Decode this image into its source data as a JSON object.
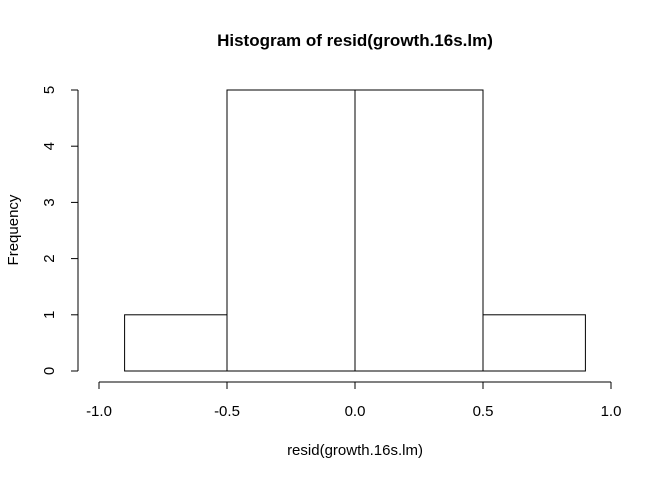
{
  "chart_data": {
    "type": "bar",
    "title": "Histogram of resid(growth.16s.lm)",
    "xlabel": "resid(growth.16s.lm)",
    "ylabel": "Frequency",
    "bins": [
      {
        "x0": -0.9,
        "x1": -0.5,
        "count": 1
      },
      {
        "x0": -0.5,
        "x1": 0.0,
        "count": 5
      },
      {
        "x0": 0.0,
        "x1": 0.5,
        "count": 5
      },
      {
        "x0": 0.5,
        "x1": 0.9,
        "count": 1
      }
    ],
    "xlim": [
      -1.0,
      1.0
    ],
    "ylim": [
      0,
      5
    ],
    "x_ticks": [
      "-1.0",
      "-0.5",
      "0.0",
      "0.5",
      "1.0"
    ],
    "y_ticks": [
      "0",
      "1",
      "2",
      "3",
      "4",
      "5"
    ],
    "grid": false
  }
}
